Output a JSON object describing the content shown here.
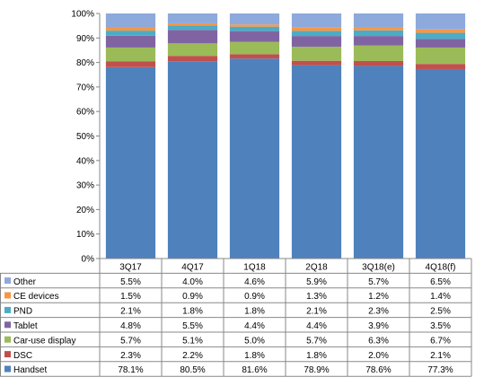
{
  "chart_data": {
    "type": "bar",
    "stacked": true,
    "normalized": true,
    "categories": [
      "3Q17",
      "4Q17",
      "1Q18",
      "2Q18",
      "3Q18(e)",
      "4Q18(f)"
    ],
    "ylim": [
      0,
      100
    ],
    "y_ticks": [
      "0%",
      "10%",
      "20%",
      "30%",
      "40%",
      "50%",
      "60%",
      "70%",
      "80%",
      "90%",
      "100%"
    ],
    "grid": false,
    "legend": "embedded in data table rows below the plot",
    "series": [
      {
        "name": "Handset",
        "color": "#4F81BD",
        "values": [
          78.1,
          80.5,
          81.6,
          78.9,
          78.6,
          77.3
        ],
        "labels": [
          "78.1%",
          "80.5%",
          "81.6%",
          "78.9%",
          "78.6%",
          "77.3%"
        ]
      },
      {
        "name": "DSC",
        "color": "#C0504D",
        "values": [
          2.3,
          2.2,
          1.8,
          1.8,
          2.0,
          2.1
        ],
        "labels": [
          "2.3%",
          "2.2%",
          "1.8%",
          "1.8%",
          "2.0%",
          "2.1%"
        ]
      },
      {
        "name": "Car-use display",
        "color": "#9BBB59",
        "values": [
          5.7,
          5.1,
          5.0,
          5.7,
          6.3,
          6.7
        ],
        "labels": [
          "5.7%",
          "5.1%",
          "5.0%",
          "5.7%",
          "6.3%",
          "6.7%"
        ]
      },
      {
        "name": "Tablet",
        "color": "#8064A2",
        "values": [
          4.8,
          5.5,
          4.4,
          4.4,
          3.9,
          3.5
        ],
        "labels": [
          "4.8%",
          "5.5%",
          "4.4%",
          "4.4%",
          "3.9%",
          "3.5%"
        ]
      },
      {
        "name": "PND",
        "color": "#4BACC6",
        "values": [
          2.1,
          1.8,
          1.8,
          2.1,
          2.3,
          2.5
        ],
        "labels": [
          "2.1%",
          "1.8%",
          "1.8%",
          "2.1%",
          "2.3%",
          "2.5%"
        ]
      },
      {
        "name": "CE devices",
        "color": "#F79646",
        "values": [
          1.5,
          0.9,
          0.9,
          1.3,
          1.2,
          1.4
        ],
        "labels": [
          "1.5%",
          "0.9%",
          "0.9%",
          "1.3%",
          "1.2%",
          "1.4%"
        ]
      },
      {
        "name": "Other",
        "color": "#8EA9DB",
        "values": [
          5.5,
          4.0,
          4.6,
          5.9,
          5.7,
          6.5
        ],
        "labels": [
          "5.5%",
          "4.0%",
          "4.6%",
          "5.9%",
          "5.7%",
          "6.5%"
        ]
      }
    ],
    "table_row_order": [
      "Other",
      "CE devices",
      "PND",
      "Tablet",
      "Car-use display",
      "DSC",
      "Handset"
    ]
  }
}
